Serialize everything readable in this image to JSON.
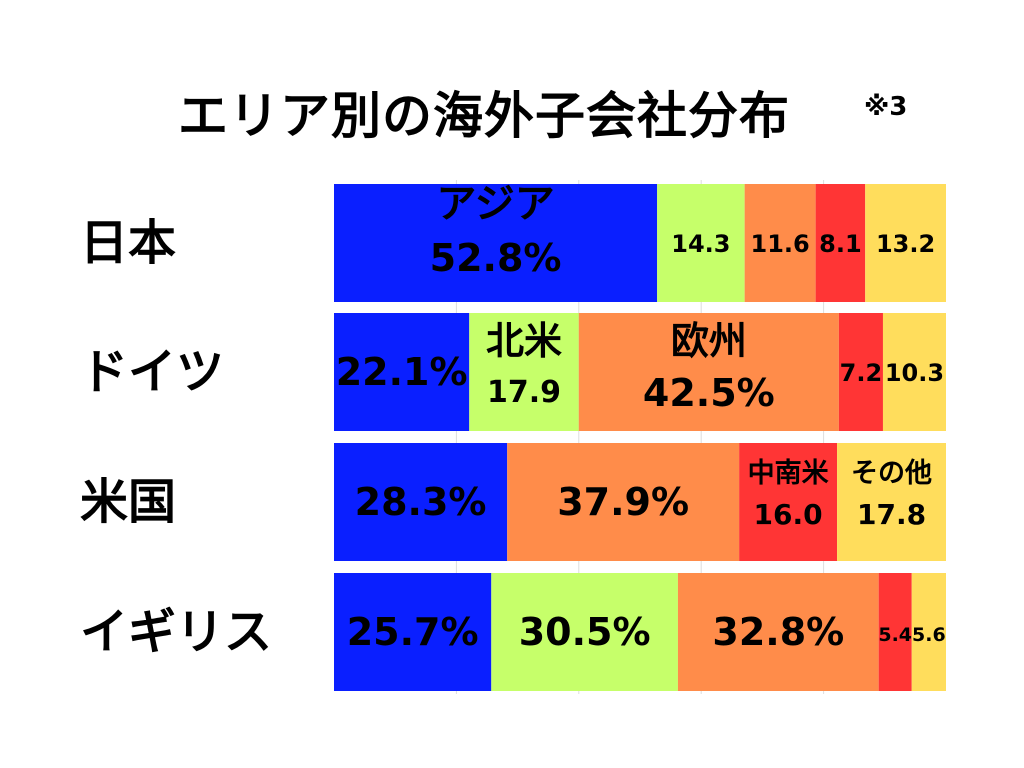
{
  "title": "エリア別の海外子会社分布",
  "note": "※3",
  "chart_data": {
    "type": "bar",
    "orientation": "horizontal",
    "stacked": true,
    "percent": true,
    "categories": [
      "日本",
      "ドイツ",
      "米国",
      "イギリス"
    ],
    "xlim": [
      0,
      100
    ],
    "grid": true,
    "legend": "none",
    "series": [
      {
        "name": "アジア",
        "color": "#0a1fff",
        "values": [
          52.8,
          22.1,
          28.3,
          25.7
        ],
        "labels": [
          "52.8%",
          "22.1%",
          "28.3%",
          "25.7%"
        ]
      },
      {
        "name": "北米",
        "color": "#c6ff6a",
        "values": [
          14.3,
          17.9,
          0,
          30.5
        ],
        "labels": [
          "14.3",
          "17.9",
          "",
          "30.5%"
        ]
      },
      {
        "name": "欧州",
        "color": "#ff8c4a",
        "values": [
          11.6,
          42.5,
          37.9,
          32.8
        ],
        "labels": [
          "11.6",
          "42.5%",
          "37.9%",
          "32.8%"
        ]
      },
      {
        "name": "中南米",
        "color": "#ff3535",
        "values": [
          8.1,
          7.2,
          16.0,
          5.4
        ],
        "labels": [
          "8.1",
          "7.2",
          "16.0",
          "5.4"
        ]
      },
      {
        "name": "その他",
        "color": "#ffdd5c",
        "values": [
          13.2,
          10.3,
          17.8,
          5.6
        ],
        "labels": [
          "13.2",
          "10.3",
          "17.8",
          "5.6"
        ]
      }
    ]
  }
}
